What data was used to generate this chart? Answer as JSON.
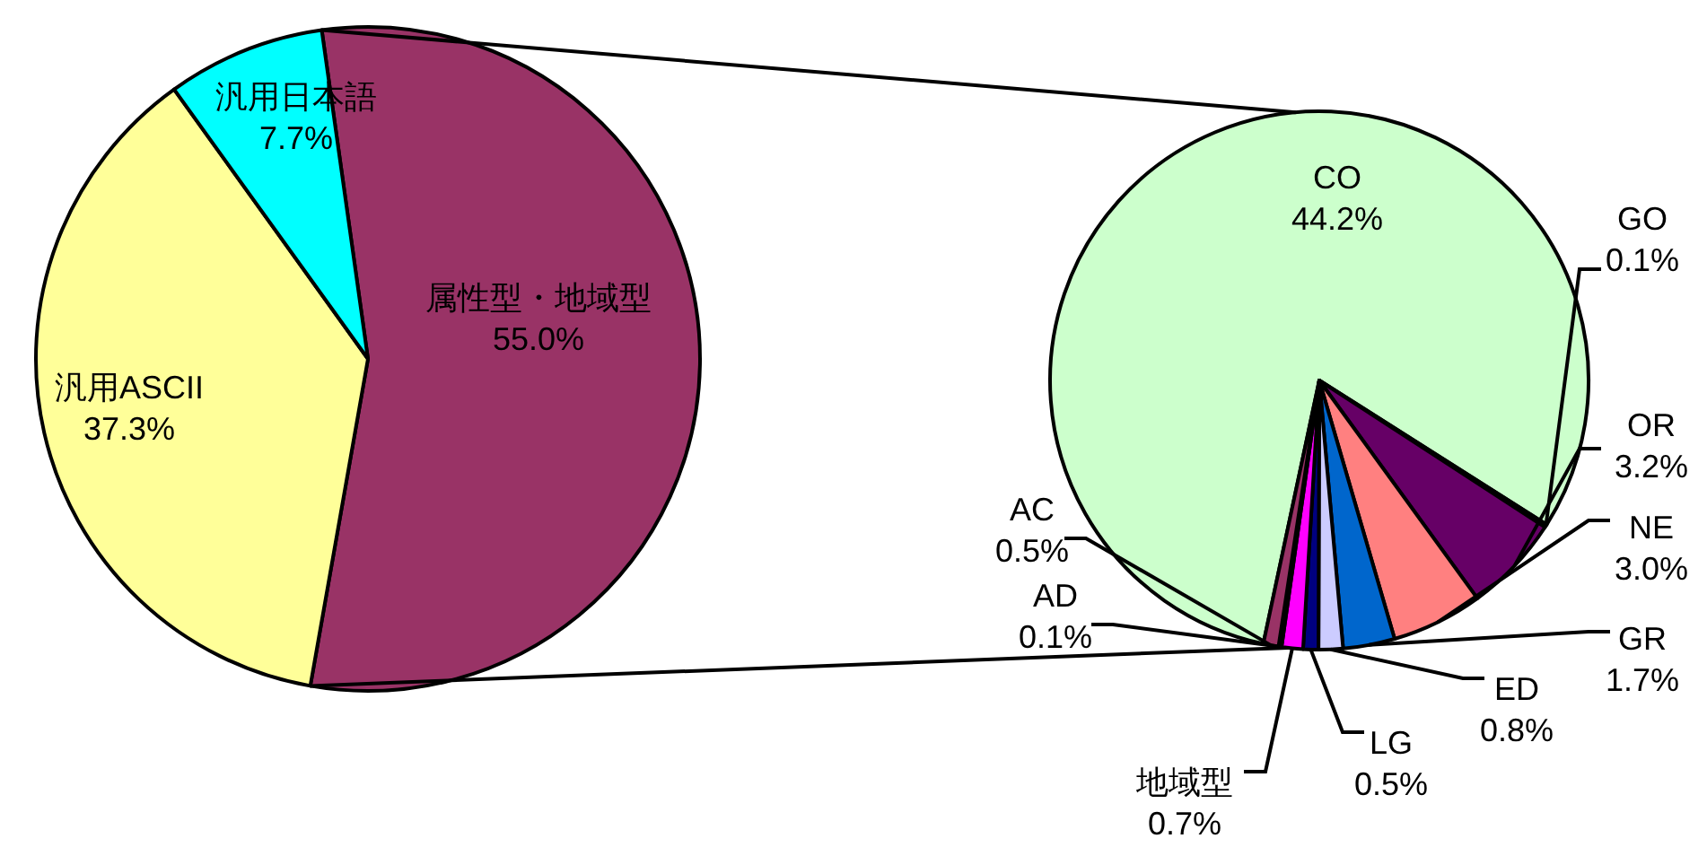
{
  "chart_data": [
    {
      "type": "pie",
      "categories": [
        "属性型・地域型",
        "汎用ASCII",
        "汎用日本語"
      ],
      "values": [
        55.0,
        37.3,
        7.7
      ],
      "value_labels": [
        "55.0%",
        "37.3%",
        "7.7%"
      ],
      "colors": [
        "#993366",
        "#ffff99",
        "#00ffff"
      ]
    },
    {
      "type": "pie",
      "categories": [
        "CO",
        "GO",
        "OR",
        "NE",
        "GR",
        "ED",
        "LG",
        "地域型",
        "AD",
        "AC"
      ],
      "values": [
        44.2,
        0.1,
        3.2,
        3.0,
        1.7,
        0.8,
        0.5,
        0.7,
        0.1,
        0.5
      ],
      "value_labels": [
        "44.2%",
        "0.1%",
        "3.2%",
        "3.0%",
        "1.7%",
        "0.8%",
        "0.5%",
        "0.7%",
        "0.1%",
        "0.5%"
      ],
      "colors": [
        "#ccffcc",
        "#333399",
        "#660066",
        "#ff8080",
        "#0066cc",
        "#ccccff",
        "#000080",
        "#ff00ff",
        "#800000",
        "#993366"
      ]
    }
  ]
}
